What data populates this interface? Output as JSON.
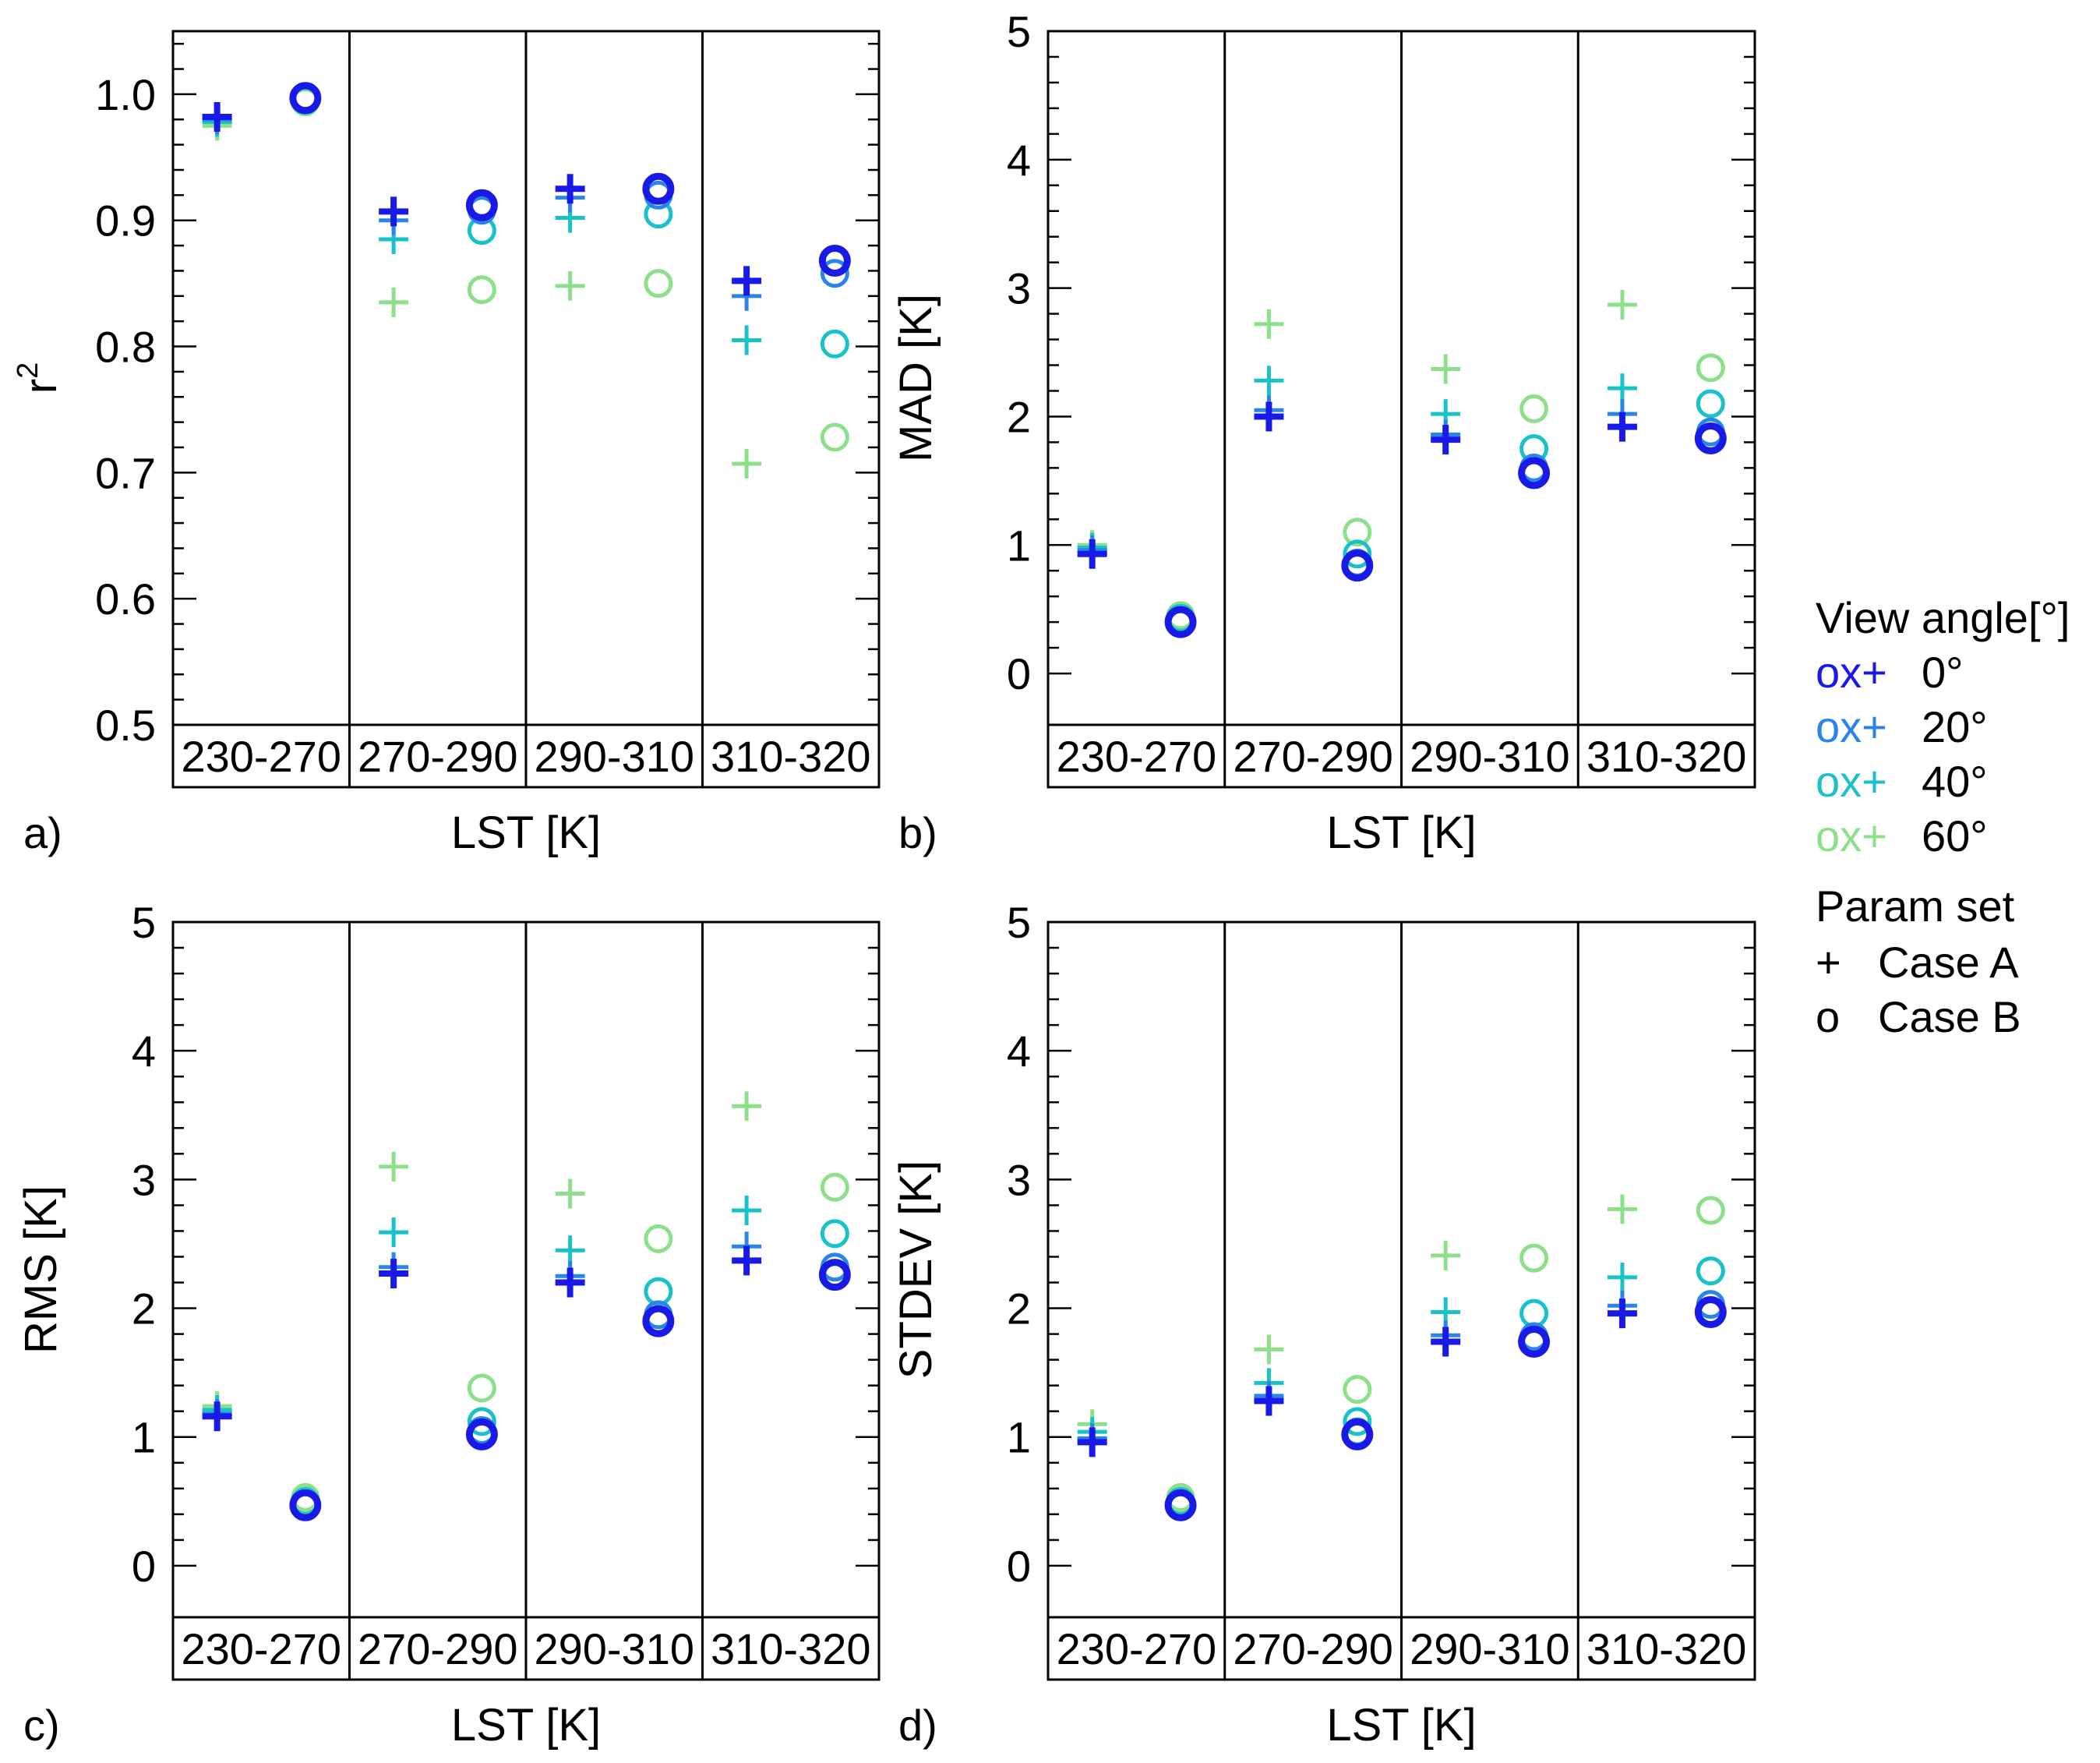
{
  "colors": {
    "0": "#1a1ae6",
    "20": "#2a85e8",
    "40": "#18c2c8",
    "60": "#8de08a"
  },
  "chart_data": [
    {
      "type": "scatter",
      "panel_label": "a)",
      "xlabel": "LST [K]",
      "ylabel": "r",
      "ylabel_superscript": "2",
      "ylim": [
        0.5,
        1.05
      ],
      "yticks": [
        0.5,
        0.6,
        0.7,
        0.8,
        0.9,
        1.0
      ],
      "ytick_labels": [
        "0.5",
        "0.6",
        "0.7",
        "0.8",
        "0.9",
        "1.0"
      ],
      "categories": [
        "230-270",
        "270-290",
        "290-310",
        "310-320"
      ],
      "series": [
        {
          "angle": "0",
          "caseA": [
            0.982,
            0.907,
            0.925,
            0.852
          ],
          "caseB": [
            0.997,
            0.912,
            0.925,
            0.868
          ]
        },
        {
          "angle": "20",
          "caseA": [
            0.98,
            0.9,
            0.918,
            0.84
          ],
          "caseB": [
            0.996,
            0.908,
            0.92,
            0.858
          ]
        },
        {
          "angle": "40",
          "caseA": [
            0.978,
            0.885,
            0.902,
            0.805
          ],
          "caseB": [
            0.995,
            0.892,
            0.905,
            0.802
          ]
        },
        {
          "angle": "60",
          "caseA": [
            0.975,
            0.835,
            0.848,
            0.707
          ],
          "caseB": [
            0.994,
            0.845,
            0.85,
            0.728
          ]
        }
      ]
    },
    {
      "type": "scatter",
      "panel_label": "b)",
      "xlabel": "LST [K]",
      "ylabel": "MAD [K]",
      "ylim": [
        -0.4,
        5
      ],
      "yticks": [
        0,
        1,
        2,
        3,
        4,
        5
      ],
      "ytick_labels": [
        "0",
        "1",
        "2",
        "3",
        "4",
        "5"
      ],
      "categories": [
        "230-270",
        "270-290",
        "290-310",
        "310-320"
      ],
      "series": [
        {
          "angle": "0",
          "caseA": [
            0.93,
            2.0,
            1.82,
            1.92
          ],
          "caseB": [
            0.4,
            0.84,
            1.56,
            1.83
          ]
        },
        {
          "angle": "20",
          "caseA": [
            0.96,
            2.05,
            1.86,
            2.02
          ],
          "caseB": [
            0.41,
            0.86,
            1.6,
            1.88
          ]
        },
        {
          "angle": "40",
          "caseA": [
            0.98,
            2.28,
            2.02,
            2.22
          ],
          "caseB": [
            0.43,
            0.93,
            1.75,
            2.1
          ]
        },
        {
          "angle": "60",
          "caseA": [
            1.0,
            2.72,
            2.37,
            2.87
          ],
          "caseB": [
            0.45,
            1.1,
            2.06,
            2.38
          ]
        }
      ]
    },
    {
      "type": "scatter",
      "panel_label": "c)",
      "xlabel": "LST [K]",
      "ylabel": "RMS [K]",
      "ylim": [
        -0.4,
        5
      ],
      "yticks": [
        0,
        1,
        2,
        3,
        4,
        5
      ],
      "ytick_labels": [
        "0",
        "1",
        "2",
        "3",
        "4",
        "5"
      ],
      "categories": [
        "230-270",
        "270-290",
        "290-310",
        "310-320"
      ],
      "series": [
        {
          "angle": "0",
          "caseA": [
            1.16,
            2.27,
            2.2,
            2.37
          ],
          "caseB": [
            0.47,
            1.02,
            1.9,
            2.26
          ]
        },
        {
          "angle": "20",
          "caseA": [
            1.18,
            2.32,
            2.25,
            2.48
          ],
          "caseB": [
            0.48,
            1.05,
            1.95,
            2.32
          ]
        },
        {
          "angle": "40",
          "caseA": [
            1.21,
            2.59,
            2.45,
            2.76
          ],
          "caseB": [
            0.5,
            1.12,
            2.13,
            2.58
          ]
        },
        {
          "angle": "60",
          "caseA": [
            1.24,
            3.1,
            2.89,
            3.57
          ],
          "caseB": [
            0.53,
            1.38,
            2.54,
            2.94
          ]
        }
      ]
    },
    {
      "type": "scatter",
      "panel_label": "d)",
      "xlabel": "LST [K]",
      "ylabel": "STDEV [K]",
      "ylim": [
        -0.4,
        5
      ],
      "yticks": [
        0,
        1,
        2,
        3,
        4,
        5
      ],
      "ytick_labels": [
        "0",
        "1",
        "2",
        "3",
        "4",
        "5"
      ],
      "categories": [
        "230-270",
        "270-290",
        "290-310",
        "310-320"
      ],
      "series": [
        {
          "angle": "0",
          "caseA": [
            0.96,
            1.28,
            1.74,
            1.96
          ],
          "caseB": [
            0.47,
            1.02,
            1.74,
            1.97
          ]
        },
        {
          "angle": "20",
          "caseA": [
            0.99,
            1.32,
            1.79,
            2.02
          ],
          "caseB": [
            0.48,
            1.04,
            1.78,
            2.03
          ]
        },
        {
          "angle": "40",
          "caseA": [
            1.04,
            1.42,
            1.97,
            2.24
          ],
          "caseB": [
            0.5,
            1.12,
            1.96,
            2.29
          ]
        },
        {
          "angle": "60",
          "caseA": [
            1.1,
            1.68,
            2.41,
            2.77
          ],
          "caseB": [
            0.53,
            1.37,
            2.39,
            2.76
          ]
        }
      ]
    }
  ],
  "legend": {
    "title_angle": "View angle[°]",
    "angles": [
      {
        "key": "0",
        "marker": "ox+",
        "label": "0°"
      },
      {
        "key": "20",
        "marker": "ox+",
        "label": "20°"
      },
      {
        "key": "40",
        "marker": "ox+",
        "label": "40°"
      },
      {
        "key": "60",
        "marker": "ox+",
        "label": "60°"
      }
    ],
    "title_param": "Param set",
    "params": [
      {
        "symbol": "+",
        "label": "Case A"
      },
      {
        "symbol": "o",
        "label": "Case B"
      }
    ]
  }
}
